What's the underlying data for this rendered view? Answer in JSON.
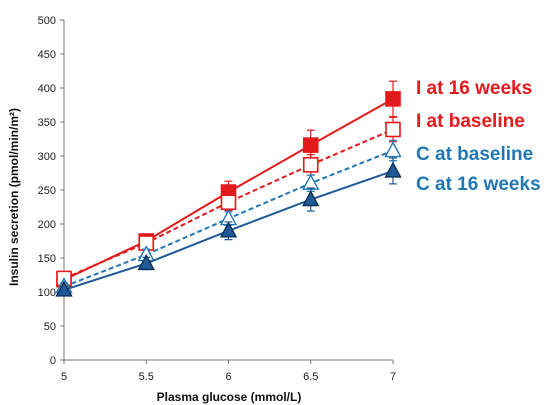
{
  "chart_data": {
    "type": "line",
    "title": "",
    "xlabel": "Plasma glucose (mmol/L)",
    "ylabel": "Insulin secretion (pmol/min/m²)",
    "x": [
      5,
      5.5,
      6,
      6.5,
      7
    ],
    "x_tick_labels": [
      "5",
      "5.5",
      "6",
      "6.5",
      "7"
    ],
    "y_tick_labels": [
      "0",
      "50",
      "100",
      "150",
      "200",
      "250",
      "300",
      "350",
      "400",
      "450",
      "500"
    ],
    "xlim": [
      5,
      7
    ],
    "ylim": [
      0,
      500
    ],
    "grid": false,
    "legend_placement": "right, labels next to line ends",
    "series": [
      {
        "name": "I at 16 weeks",
        "values": [
          118,
          175,
          247,
          316,
          384
        ],
        "errors": [
          6,
          10,
          16,
          22,
          26
        ],
        "color": "#e31a1c",
        "line_style": "solid",
        "marker": "square",
        "filled": true
      },
      {
        "name": "I at baseline",
        "values": [
          120,
          172,
          232,
          287,
          339
        ],
        "errors": [
          5,
          8,
          12,
          15,
          18
        ],
        "color": "#e31a1c",
        "line_style": "dashed",
        "marker": "square",
        "filled": false
      },
      {
        "name": "C at baseline",
        "values": [
          108,
          155,
          208,
          260,
          308
        ],
        "errors": [
          5,
          8,
          10,
          12,
          15
        ],
        "color": "#1f77b4",
        "line_style": "dashed",
        "marker": "triangle",
        "filled": false
      },
      {
        "name": "C at 16 weeks",
        "values": [
          103,
          142,
          190,
          236,
          278
        ],
        "errors": [
          5,
          9,
          13,
          17,
          19
        ],
        "color": "#1f5a96",
        "line_style": "solid",
        "marker": "triangle",
        "filled": true
      }
    ],
    "legend": [
      {
        "label": "I at 16 weeks",
        "color": "#e31a1c"
      },
      {
        "label": "I at baseline",
        "color": "#e31a1c"
      },
      {
        "label": "C at baseline",
        "color": "#1f77b4"
      },
      {
        "label": "C at 16 weeks",
        "color": "#1f77b4"
      }
    ]
  }
}
